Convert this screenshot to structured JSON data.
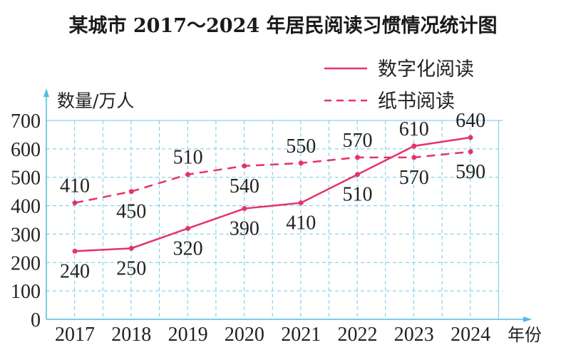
{
  "chart_data": {
    "type": "line",
    "title": "某城市 2017～2024 年居民阅读习惯情况统计图",
    "ylabel": "数量/万人",
    "xlabel": "年份",
    "categories": [
      "2017",
      "2018",
      "2019",
      "2020",
      "2021",
      "2022",
      "2023",
      "2024"
    ],
    "yticks": [
      "0",
      "100",
      "200",
      "300",
      "400",
      "500",
      "600",
      "700"
    ],
    "ylim": [
      0,
      700
    ],
    "grid": true,
    "legend_position": "top-right",
    "series": [
      {
        "name": "数字化阅读",
        "style": "solid",
        "color": "#e5336a",
        "values": [
          240,
          250,
          320,
          390,
          410,
          510,
          610,
          640
        ],
        "labels": [
          "240",
          "250",
          "320",
          "390",
          "410",
          "510",
          "610",
          "640"
        ]
      },
      {
        "name": "纸书阅读",
        "style": "dashed",
        "color": "#e5336a",
        "values": [
          410,
          450,
          510,
          540,
          550,
          570,
          570,
          590
        ],
        "labels": [
          "410",
          "450",
          "510",
          "540",
          "550",
          "570",
          "570",
          "590"
        ]
      }
    ]
  },
  "colors": {
    "grid": "#6fcbe6",
    "axis": "#4fbde0"
  }
}
